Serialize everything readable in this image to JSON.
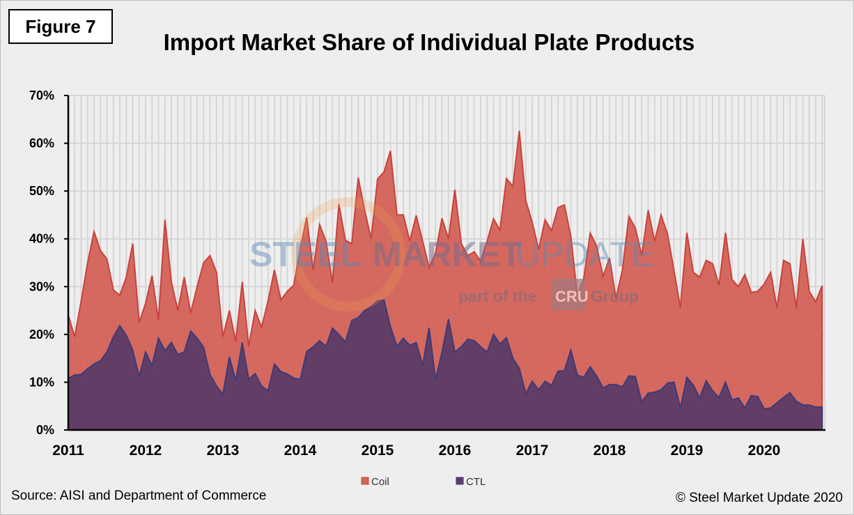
{
  "figure_label": "Figure 7",
  "source": "Source: AISI and Department of Commerce",
  "copyright": "© Steel Market Update 2020",
  "watermark": {
    "line1a": "STEEL",
    "line1b": "MARKET",
    "line1c": "UPDATE",
    "line2a": "part of the",
    "line2b": "CRU",
    "line2c": "Group"
  },
  "chart_data": {
    "type": "area",
    "title": "Import Market Share of Individual Plate Products",
    "xlabel": "",
    "ylabel": "",
    "ylim": [
      0,
      70
    ],
    "y_ticks": [
      "0%",
      "10%",
      "20%",
      "30%",
      "40%",
      "50%",
      "60%",
      "70%"
    ],
    "x_ticks": [
      "2011",
      "2012",
      "2013",
      "2014",
      "2015",
      "2016",
      "2017",
      "2018",
      "2019",
      "2020"
    ],
    "x_range": "Jan 2011 - Oct 2020 (monthly)",
    "grid": {
      "horizontal": true,
      "vertical": true
    },
    "legend_position": "bottom",
    "series": [
      {
        "name": "Coil",
        "color": "#d4645a",
        "line_color": "#c9413a",
        "values": [
          24,
          19.5,
          27,
          35,
          41.5,
          37.5,
          35.8,
          29.3,
          28.2,
          32,
          39,
          22.5,
          26.5,
          32.3,
          23,
          44,
          31,
          25,
          32,
          24.5,
          30,
          35,
          36.5,
          33,
          19.5,
          25,
          18.5,
          31,
          17.5,
          25,
          21.5,
          27,
          33.5,
          27.2,
          29,
          30.3,
          38,
          44.5,
          33.5,
          43,
          39.5,
          30.8,
          47.3,
          39.7,
          39,
          52.8,
          46,
          40,
          52.5,
          54,
          58.4,
          45,
          45,
          39.5,
          44.9,
          39.5,
          34,
          37,
          44.3,
          40,
          50.3,
          39,
          36.5,
          37.3,
          35.3,
          39.5,
          44.2,
          41.8,
          52.6,
          51,
          62.6,
          48,
          43.5,
          37.8,
          44,
          41.7,
          46.5,
          47.1,
          40.5,
          28.2,
          31.7,
          41.2,
          38.5,
          32.1,
          36,
          27.5,
          33.5,
          44.7,
          42.3,
          36.5,
          46,
          39.5,
          45,
          41,
          33.5,
          25.5,
          41.3,
          33,
          32,
          35.5,
          34.8,
          30.3,
          41.3,
          31.5,
          30,
          32.5,
          28.8,
          29,
          30.5,
          33,
          25.5,
          35.5,
          34.8,
          25.5,
          40,
          29,
          26.8,
          30.2
        ]
      },
      {
        "name": "CTL",
        "color": "#5e3d66",
        "line_color": "#3b3a7a",
        "values": [
          10.8,
          11.5,
          11.6,
          12.8,
          13.8,
          14.5,
          16.3,
          19.5,
          21.8,
          19.8,
          16.7,
          11.2,
          16.3,
          13.5,
          19.2,
          16.6,
          18.3,
          15.8,
          16.3,
          20.7,
          19.2,
          17.3,
          11.6,
          9.2,
          7.5,
          15.3,
          10.3,
          18.3,
          10.6,
          11.8,
          9.2,
          8.2,
          13.8,
          12.2,
          11.7,
          10.8,
          10.6,
          16.4,
          17.4,
          18.7,
          17.5,
          21.3,
          20,
          18.4,
          22.9,
          23.5,
          25,
          25.8,
          27,
          27.2,
          21.6,
          17.5,
          19.2,
          17.7,
          18.3,
          13.5,
          21.4,
          10.5,
          16.3,
          23.2,
          16.3,
          17.4,
          19,
          18.7,
          17.4,
          16.3,
          20,
          18,
          19.3,
          15,
          12.9,
          7.6,
          10.2,
          8.4,
          10.2,
          9.3,
          12.3,
          12.4,
          16.7,
          11.5,
          11,
          13.2,
          11.3,
          8.8,
          9.5,
          9.5,
          9,
          11.3,
          11.2,
          5.9,
          7.7,
          7.9,
          8.4,
          9.8,
          10,
          4.6,
          11,
          9.4,
          6.7,
          10.3,
          8.2,
          6.8,
          10,
          6.3,
          6.7,
          4.6,
          7.2,
          7,
          4.4,
          4.6,
          5.7,
          6.8,
          7.8,
          6,
          5.2,
          5.2,
          4.8,
          4.8
        ]
      }
    ]
  }
}
